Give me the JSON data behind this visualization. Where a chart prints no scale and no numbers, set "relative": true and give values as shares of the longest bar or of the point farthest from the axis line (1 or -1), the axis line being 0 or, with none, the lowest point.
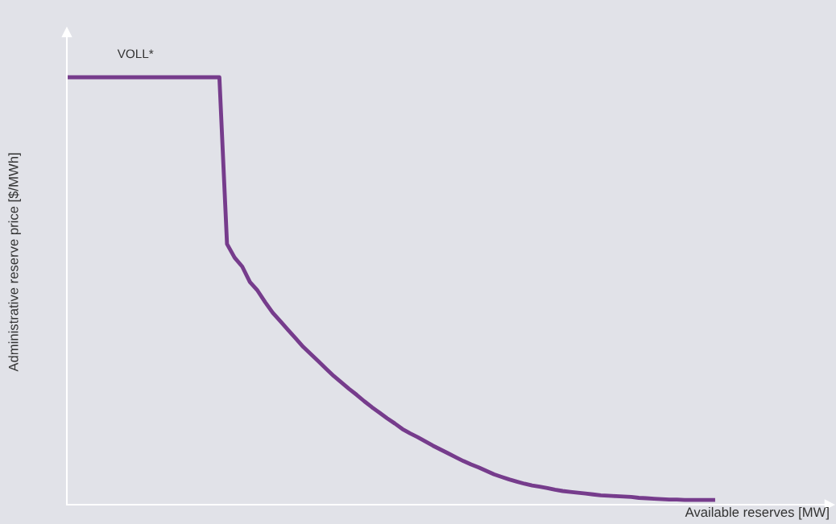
{
  "chart_data": {
    "type": "line",
    "relative": true,
    "xlabel": "Available reserves [MW]",
    "ylabel": "Administrative reserve price [$/MWh]",
    "categories": [
      null,
      null,
      null,
      null,
      null,
      null,
      null,
      null,
      null,
      null,
      null,
      null,
      null,
      null,
      null,
      null,
      null,
      null,
      null,
      null,
      null,
      null,
      null,
      null,
      null,
      null,
      null,
      null,
      null,
      null,
      null,
      null,
      null,
      null,
      null,
      null,
      null,
      null,
      null,
      null,
      null,
      null,
      null,
      null,
      null,
      null,
      null,
      null,
      null,
      null,
      null,
      null,
      null,
      null,
      null,
      null,
      null,
      null,
      null,
      null,
      null,
      null,
      null,
      null,
      null,
      null,
      null,
      null,
      null,
      null,
      null,
      null,
      null,
      null,
      null,
      null,
      null,
      null,
      null,
      null,
      null,
      null,
      null,
      null,
      null,
      null,
      null,
      null,
      null,
      null,
      null,
      null,
      null,
      null,
      null,
      null,
      null,
      null,
      null,
      null
    ],
    "series": [
      {
        "color": "#763c8c",
        "values": [
          1,
          1,
          1,
          1,
          1,
          1,
          1,
          1,
          1,
          1,
          1,
          1,
          1,
          1,
          1,
          1,
          1,
          1,
          1,
          1,
          1,
          0.61,
          0.578,
          0.557,
          0.521,
          0.501,
          0.474,
          0.449,
          0.429,
          0.409,
          0.389,
          0.369,
          0.352,
          0.335,
          0.318,
          0.301,
          0.286,
          0.271,
          0.257,
          0.242,
          0.228,
          0.215,
          0.202,
          0.19,
          0.177,
          0.167,
          0.158,
          0.148,
          0.138,
          0.129,
          0.12,
          0.111,
          0.102,
          0.094,
          0.087,
          0.079,
          0.071,
          0.065,
          0.059,
          0.054,
          0.049,
          0.045,
          0.042,
          0.039,
          0.035,
          0.032,
          0.03,
          0.028,
          0.026,
          0.024,
          0.022,
          0.021,
          0.02,
          0.019,
          0.018,
          0.016,
          0.015,
          0.014,
          0.013,
          0.012,
          0.012,
          0.011,
          0.011,
          0.011,
          0.011,
          0.011,
          null,
          null,
          null,
          null,
          null,
          null,
          null,
          null,
          null,
          null,
          null,
          null,
          null,
          null
        ]
      }
    ],
    "annotations": [
      "VOLL*"
    ],
    "line_style": "solid"
  }
}
